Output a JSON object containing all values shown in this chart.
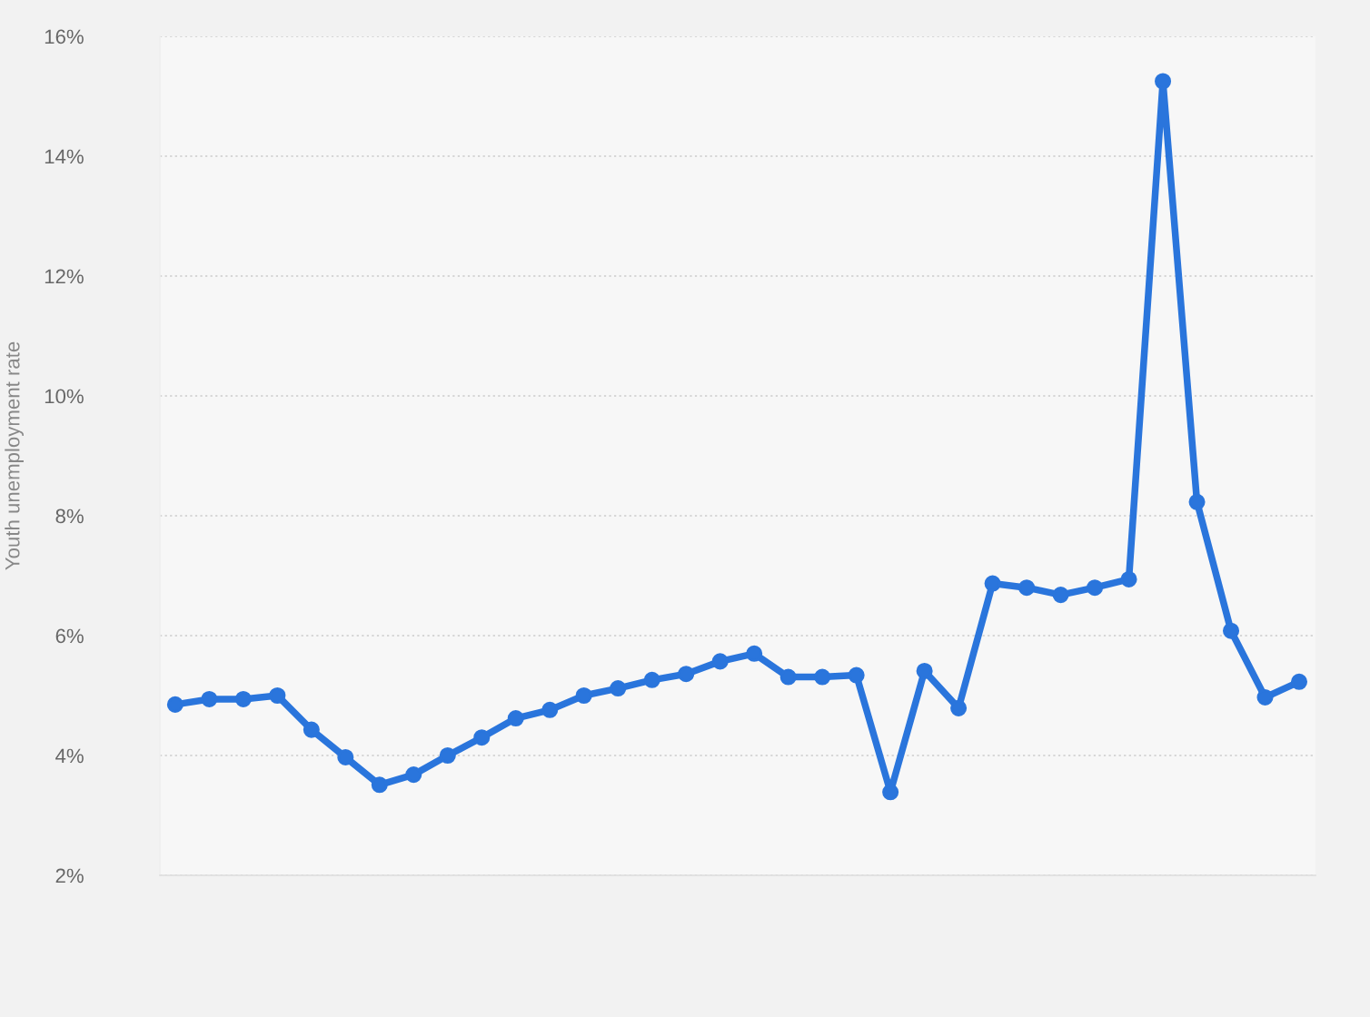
{
  "chart_data": {
    "type": "line",
    "ylabel": "Youth unemployment rate",
    "categories": [
      null,
      null,
      null,
      null,
      null,
      null,
      null,
      null,
      null,
      null,
      null,
      null,
      null,
      null,
      null,
      null,
      null,
      null,
      null,
      null,
      null,
      null,
      null,
      null,
      null,
      null,
      null,
      null,
      null,
      null,
      null,
      null,
      null,
      null
    ],
    "series": [
      {
        "color": "#2a75dc",
        "values": [
          4.85,
          4.94,
          4.94,
          5.0,
          4.43,
          3.97,
          3.51,
          3.68,
          4.0,
          4.3,
          4.62,
          4.76,
          5.0,
          5.12,
          5.26,
          5.36,
          5.57,
          5.7,
          5.31,
          5.31,
          5.34,
          3.39,
          5.41,
          4.79,
          6.87,
          6.8,
          6.68,
          6.8,
          6.94,
          15.25,
          8.23,
          6.08,
          4.97,
          5.23
        ]
      }
    ],
    "ylim": [
      2,
      16
    ],
    "yticks": [
      {
        "value": 2,
        "label": "2%"
      },
      {
        "value": 4,
        "label": "4%"
      },
      {
        "value": 6,
        "label": "6%"
      },
      {
        "value": 8,
        "label": "8%"
      },
      {
        "value": 10,
        "label": "10%"
      },
      {
        "value": 12,
        "label": "12%"
      },
      {
        "value": 14,
        "label": "14%"
      },
      {
        "value": 16,
        "label": "16%"
      }
    ],
    "grid": "y",
    "marker": "circle",
    "line_style": "solid",
    "tick_labels": "y"
  }
}
